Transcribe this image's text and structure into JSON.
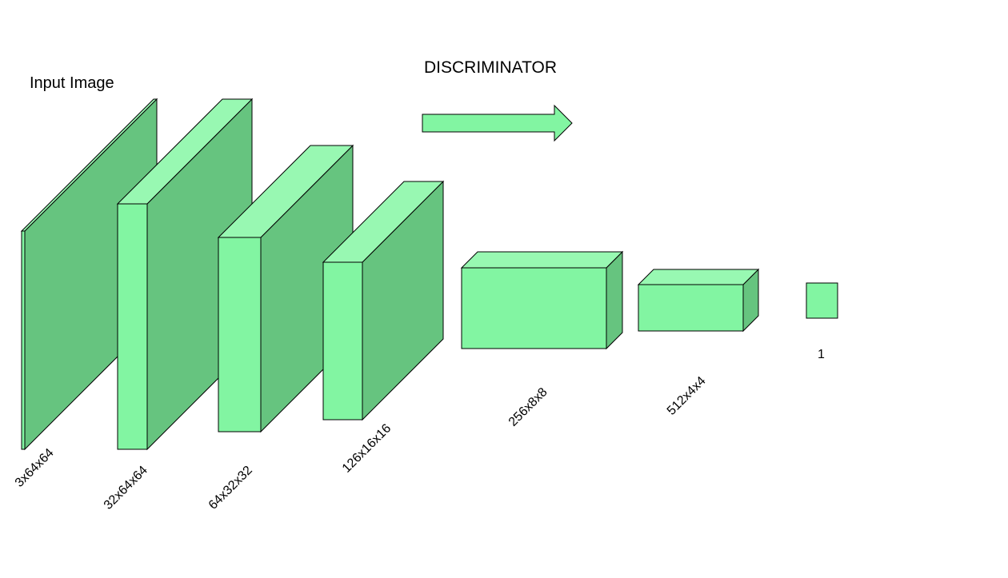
{
  "title": "DISCRIMINATOR",
  "input_label": "Input Image",
  "colors": {
    "front": "#82f5a2",
    "top": "#98f8b2",
    "side": "#66c47f",
    "stroke": "#000000",
    "arrow": "#82f5a2"
  },
  "layers": [
    {
      "label": "3x64x64"
    },
    {
      "label": "32x64x64"
    },
    {
      "label": "64x32x32"
    },
    {
      "label": "126x16x16"
    },
    {
      "label": "256x8x8"
    },
    {
      "label": "512x4x4"
    }
  ],
  "output": {
    "label": "1"
  }
}
